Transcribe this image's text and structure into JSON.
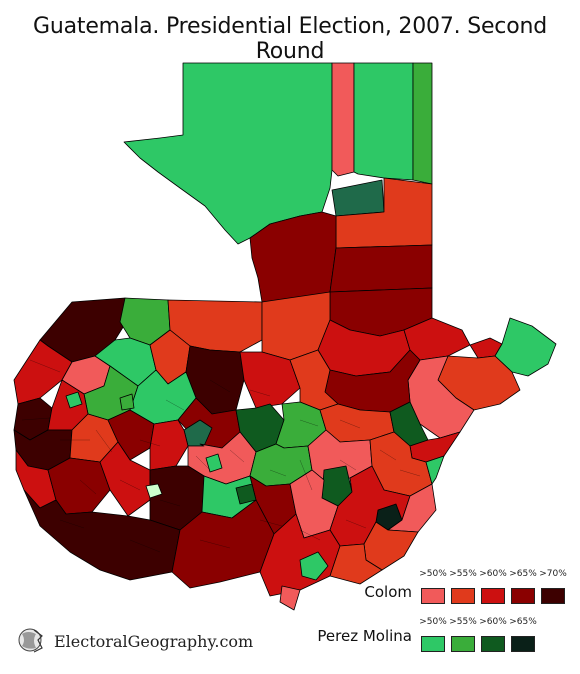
{
  "title": "Guatemala. Presidential Election, 2007. Second Round",
  "colors": {
    "colom": [
      "#f15a5a",
      "#e03a1c",
      "#cc1010",
      "#8a0000",
      "#3d0000"
    ],
    "perez_molina": [
      "#2ec866",
      "#3aad3a",
      "#0f5a1f",
      "#0a2018"
    ],
    "border": "#000000",
    "background": "#ffffff"
  },
  "legend": {
    "colom": {
      "label": "Colom",
      "thresholds": [
        ">50%",
        ">55%",
        ">60%",
        ">65%",
        ">70%"
      ]
    },
    "perez_molina": {
      "label": "Perez Molina",
      "thresholds": [
        ">50%",
        ">55%",
        ">60%",
        ">65%"
      ]
    }
  },
  "brand": {
    "text": "ElectoralGeography.com",
    "icon": "globe-face-icon"
  }
}
